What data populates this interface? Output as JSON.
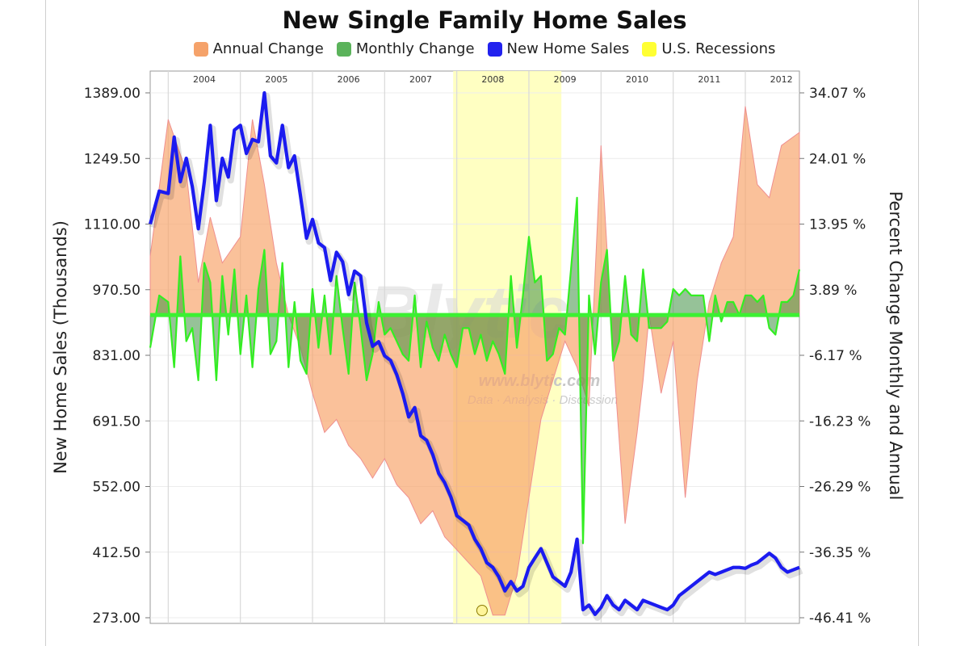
{
  "chart_data": {
    "type": "line",
    "title": "New Single Family Home Sales",
    "legend": [
      {
        "name": "Annual Change",
        "color": "#f5a26a"
      },
      {
        "name": "Monthly Change",
        "color": "#5bb35b"
      },
      {
        "name": "New Home Sales",
        "color": "#2222ee"
      },
      {
        "name": "U.S. Recessions",
        "color": "#ffff33"
      }
    ],
    "legend_position": "top",
    "ylabel": "New Home Sales (Thousands)",
    "y2label": "Percent Change Monthly and Annual",
    "y_ticks": [
      "273.00",
      "412.50",
      "552.00",
      "691.50",
      "831.00",
      "970.50",
      "1110.00",
      "1249.50",
      "1389.00"
    ],
    "y2_ticks": [
      "-46.41 %",
      "-36.35 %",
      "-26.29 %",
      "-16.23 %",
      "-6.17 %",
      "3.89 %",
      "13.95 %",
      "24.01 %",
      "34.07 %"
    ],
    "ylim": [
      273,
      1389
    ],
    "y2lim": [
      -46.41,
      34.07
    ],
    "x_years": [
      "2004",
      "2005",
      "2006",
      "2007",
      "2008",
      "2009",
      "2010",
      "2011",
      "2012"
    ],
    "xlim": [
      2003.75,
      2012.75
    ],
    "grid": true,
    "recession": [
      2007.95,
      2009.45
    ],
    "series": [
      {
        "name": "New Home Sales",
        "x": [
          2003.75,
          2003.875,
          2004.0,
          2004.083,
          2004.167,
          2004.25,
          2004.333,
          2004.417,
          2004.5,
          2004.583,
          2004.667,
          2004.75,
          2004.833,
          2004.917,
          2005.0,
          2005.083,
          2005.167,
          2005.25,
          2005.333,
          2005.417,
          2005.5,
          2005.583,
          2005.667,
          2005.75,
          2005.833,
          2005.917,
          2006.0,
          2006.083,
          2006.167,
          2006.25,
          2006.333,
          2006.417,
          2006.5,
          2006.583,
          2006.667,
          2006.75,
          2006.833,
          2006.917,
          2007.0,
          2007.083,
          2007.167,
          2007.25,
          2007.333,
          2007.417,
          2007.5,
          2007.583,
          2007.667,
          2007.75,
          2007.833,
          2007.917,
          2008.0,
          2008.083,
          2008.167,
          2008.25,
          2008.333,
          2008.417,
          2008.5,
          2008.583,
          2008.667,
          2008.75,
          2008.833,
          2008.917,
          2009.0,
          2009.083,
          2009.167,
          2009.25,
          2009.333,
          2009.417,
          2009.5,
          2009.583,
          2009.667,
          2009.75,
          2009.833,
          2009.917,
          2010.0,
          2010.083,
          2010.167,
          2010.25,
          2010.333,
          2010.417,
          2010.5,
          2010.583,
          2010.667,
          2010.75,
          2010.833,
          2010.917,
          2011.0,
          2011.083,
          2011.167,
          2011.25,
          2011.333,
          2011.417,
          2011.5,
          2011.583,
          2011.667,
          2011.75,
          2011.833,
          2011.917,
          2012.0,
          2012.083,
          2012.167,
          2012.25,
          2012.333,
          2012.417,
          2012.5,
          2012.583,
          2012.667,
          2012.75
        ],
        "values": [
          1110,
          1180,
          1175,
          1295,
          1200,
          1250,
          1190,
          1100,
          1200,
          1320,
          1160,
          1250,
          1210,
          1310,
          1320,
          1260,
          1290,
          1285,
          1389,
          1255,
          1240,
          1320,
          1230,
          1255,
          1170,
          1080,
          1120,
          1070,
          1060,
          990,
          1050,
          1030,
          960,
          1010,
          1000,
          900,
          850,
          860,
          830,
          820,
          790,
          750,
          700,
          720,
          660,
          650,
          620,
          580,
          560,
          530,
          490,
          480,
          470,
          440,
          420,
          390,
          380,
          360,
          330,
          350,
          330,
          340,
          380,
          400,
          420,
          390,
          360,
          350,
          340,
          370,
          440,
          290,
          300,
          280,
          295,
          320,
          300,
          290,
          310,
          300,
          290,
          310,
          305,
          300,
          295,
          290,
          300,
          320,
          330,
          340,
          350,
          360,
          370,
          365,
          370,
          375,
          380,
          380,
          378,
          385,
          390,
          400,
          410,
          400,
          380,
          370,
          375,
          380
        ]
      },
      {
        "name": "Annual Change",
        "x": [
          2003.75,
          2004.0,
          2004.25,
          2004.417,
          2004.583,
          2004.75,
          2005.0,
          2005.167,
          2005.333,
          2005.5,
          2005.667,
          2005.833,
          2006.0,
          2006.167,
          2006.333,
          2006.5,
          2006.667,
          2006.833,
          2007.0,
          2007.167,
          2007.333,
          2007.5,
          2007.667,
          2007.833,
          2008.0,
          2008.167,
          2008.333,
          2008.5,
          2008.667,
          2008.833,
          2009.0,
          2009.167,
          2009.333,
          2009.5,
          2009.667,
          2009.833,
          2010.0,
          2010.167,
          2010.333,
          2010.5,
          2010.583,
          2010.667,
          2010.833,
          2011.0,
          2011.167,
          2011.333,
          2011.5,
          2011.667,
          2011.833,
          2012.0,
          2012.167,
          2012.333,
          2012.5,
          2012.75
        ],
        "values": [
          9,
          30,
          22,
          5,
          15,
          8,
          12,
          30,
          20,
          8,
          0,
          -5,
          -12,
          -18,
          -16,
          -20,
          -22,
          -25,
          -22,
          -26,
          -28,
          -32,
          -30,
          -34,
          -36,
          -38,
          -40,
          -46,
          -46,
          -40,
          -28,
          -16,
          -10,
          -4,
          -8,
          -14,
          26,
          -6,
          -32,
          -18,
          -10,
          0,
          -12,
          -4,
          -28,
          -10,
          2,
          8,
          12,
          32,
          20,
          18,
          26,
          28
        ]
      },
      {
        "name": "Monthly Change",
        "x": [
          2003.75,
          2003.875,
          2004.0,
          2004.083,
          2004.167,
          2004.25,
          2004.333,
          2004.417,
          2004.5,
          2004.583,
          2004.667,
          2004.75,
          2004.833,
          2004.917,
          2005.0,
          2005.083,
          2005.167,
          2005.25,
          2005.333,
          2005.417,
          2005.5,
          2005.583,
          2005.667,
          2005.75,
          2005.833,
          2005.917,
          2006.0,
          2006.083,
          2006.167,
          2006.25,
          2006.333,
          2006.417,
          2006.5,
          2006.583,
          2006.667,
          2006.75,
          2006.833,
          2006.917,
          2007.0,
          2007.083,
          2007.167,
          2007.25,
          2007.333,
          2007.417,
          2007.5,
          2007.583,
          2007.667,
          2007.75,
          2007.833,
          2007.917,
          2008.0,
          2008.083,
          2008.167,
          2008.25,
          2008.333,
          2008.417,
          2008.5,
          2008.583,
          2008.667,
          2008.75,
          2008.833,
          2008.917,
          2009.0,
          2009.083,
          2009.167,
          2009.25,
          2009.333,
          2009.417,
          2009.5,
          2009.583,
          2009.667,
          2009.75,
          2009.833,
          2009.917,
          2010.0,
          2010.083,
          2010.167,
          2010.25,
          2010.333,
          2010.417,
          2010.5,
          2010.583,
          2010.667,
          2010.75,
          2010.833,
          2010.917,
          2011.0,
          2011.083,
          2011.167,
          2011.25,
          2011.333,
          2011.417,
          2011.5,
          2011.583,
          2011.667,
          2011.75,
          2011.833,
          2011.917,
          2012.0,
          2012.083,
          2012.167,
          2012.25,
          2012.333,
          2012.417,
          2012.5,
          2012.583,
          2012.667,
          2012.75
        ],
        "values": [
          -5,
          3,
          2,
          -8,
          9,
          -4,
          -2,
          -10,
          8,
          5,
          -10,
          6,
          -3,
          7,
          -6,
          3,
          -8,
          4,
          10,
          -6,
          -4,
          8,
          -8,
          2,
          -7,
          -9,
          4,
          -5,
          3,
          -6,
          6,
          -2,
          -9,
          5,
          -2,
          -10,
          -6,
          2,
          -3,
          -2,
          -4,
          -6,
          -7,
          3,
          -8,
          -1,
          -5,
          -7,
          -3,
          -6,
          -8,
          -2,
          -2,
          -6,
          -3,
          -7,
          -4,
          -6,
          -9,
          6,
          -5,
          3,
          12,
          5,
          6,
          -7,
          -6,
          -2,
          -3,
          7,
          18,
          -35,
          3,
          -6,
          5,
          10,
          -7,
          -4,
          6,
          -3,
          -4,
          7,
          -2,
          -2,
          -2,
          -1,
          4,
          3,
          4,
          3,
          3,
          3,
          -4,
          3,
          -1,
          2,
          2,
          0,
          3,
          3,
          2,
          3,
          -2,
          -3,
          2,
          2,
          3,
          7
        ]
      }
    ]
  },
  "watermark": {
    "logo": "Blytic",
    "url": "www.blytic.com",
    "tagline": "Data · Analysis · Discussion"
  }
}
